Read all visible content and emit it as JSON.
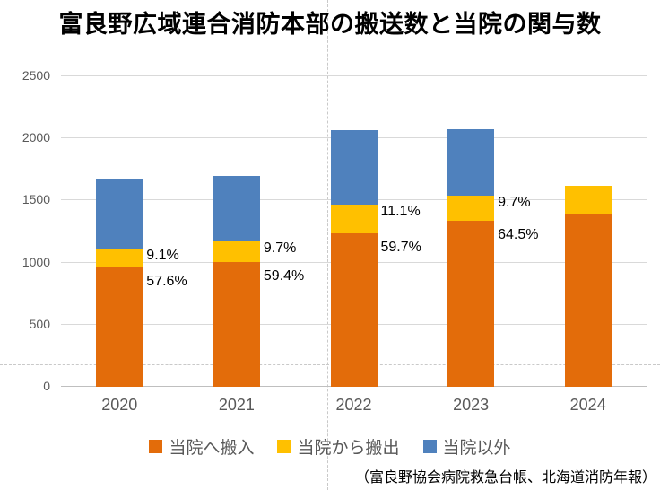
{
  "title": "富良野広域連合消防本部の搬送数と当院の関与数",
  "source_note": "（富良野協会病院救急台帳、北海道消防年報）",
  "chart_data": {
    "type": "bar",
    "stacked": true,
    "title": "富良野広域連合消防本部の搬送数と当院の関与数",
    "categories": [
      "2020",
      "2021",
      "2022",
      "2023",
      "2024"
    ],
    "series": [
      {
        "key": "transfer-in",
        "name": "当院へ搬入",
        "color": "#E36C0A",
        "values": [
          960,
          1005,
          1235,
          1340,
          1385
        ]
      },
      {
        "key": "transfer-out",
        "name": "当院から搬出",
        "color": "#FFC000",
        "values": [
          150,
          165,
          230,
          200,
          235
        ]
      },
      {
        "key": "other",
        "name": "当院以外",
        "color": "#4F81BD",
        "values": [
          560,
          525,
          605,
          535,
          0
        ]
      }
    ],
    "annotations": [
      {
        "category": "2020",
        "transfer_out_pct": "9.1%",
        "transfer_in_pct": "57.6%"
      },
      {
        "category": "2021",
        "transfer_out_pct": "9.7%",
        "transfer_in_pct": "59.4%"
      },
      {
        "category": "2022",
        "transfer_out_pct": "11.1%",
        "transfer_in_pct": "59.7%"
      },
      {
        "category": "2023",
        "transfer_out_pct": "9.7%",
        "transfer_in_pct": "64.5%"
      },
      {
        "category": "2024",
        "transfer_out_pct": "",
        "transfer_in_pct": ""
      }
    ],
    "ylim": [
      0,
      2500
    ],
    "yticks": [
      0,
      500,
      1000,
      1500,
      2000,
      2500
    ],
    "xlabel": "",
    "ylabel": "",
    "grid": true,
    "legend_position": "bottom"
  },
  "colors": {
    "axis_text": "#595959",
    "gridline": "#d9d9d9",
    "baseline": "#bfbfbf",
    "guide": "#c9c9c9",
    "annotation_text": "#000000"
  }
}
